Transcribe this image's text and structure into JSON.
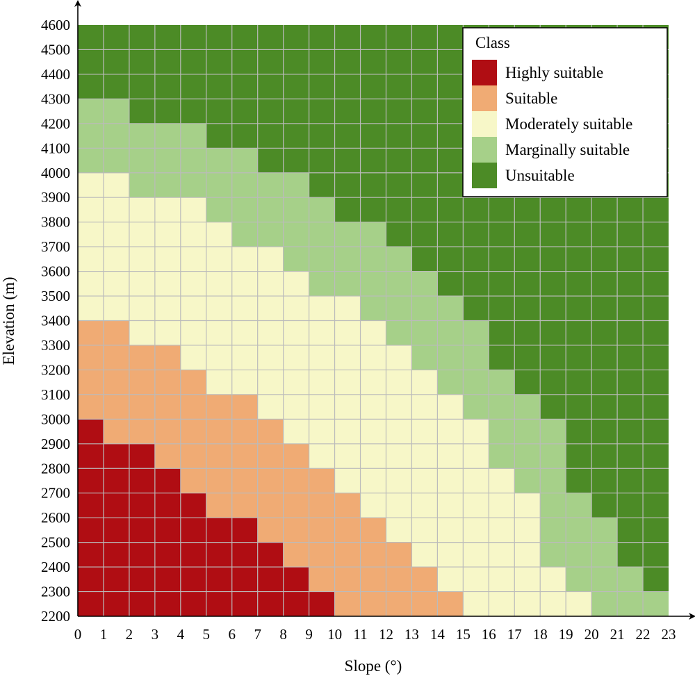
{
  "chart_data": {
    "type": "heatmap",
    "xlabel": "Slope (°)",
    "ylabel": "Elevation (m)",
    "x_ticks": [
      "0",
      "1",
      "2",
      "3",
      "4",
      "5",
      "6",
      "7",
      "8",
      "9",
      "10",
      "11",
      "12",
      "13",
      "14",
      "15",
      "16",
      "17",
      "18",
      "19",
      "20",
      "21",
      "22",
      "23"
    ],
    "y_ticks": [
      "2200",
      "2300",
      "2400",
      "2500",
      "2600",
      "2700",
      "2800",
      "2900",
      "3000",
      "3100",
      "3200",
      "3300",
      "3400",
      "3500",
      "3600",
      "3700",
      "3800",
      "3900",
      "4000",
      "4100",
      "4200",
      "4300",
      "4400",
      "4500",
      "4600"
    ],
    "xlim": [
      0,
      23
    ],
    "ylim": [
      2200,
      4600
    ],
    "x_step": 1,
    "y_step": 100,
    "grid": true,
    "legend": {
      "title": "Class",
      "position": "top-right",
      "items": [
        {
          "label": "Highly suitable",
          "color": "#b00d13",
          "code": 1
        },
        {
          "label": "Suitable",
          "color": "#f0ab74",
          "code": 2
        },
        {
          "label": "Moderately suitable",
          "color": "#f7f7c8",
          "code": 3
        },
        {
          "label": "Marginally suitable",
          "color": "#a6d089",
          "code": 4
        },
        {
          "label": "Unsuitable",
          "color": "#4c8b26",
          "code": 5
        }
      ]
    },
    "class_breaks_note": "Each slope column (x from 0 to 23 in steps of 1) lists, for the 24 elevation rows from 2200-2300 m upward, the class code; derived from the boundaries below",
    "boundaries": {
      "highly_suitable_top_elevation_by_slope": [
        3000,
        2900,
        2900,
        2800,
        2700,
        2600,
        2600,
        2500,
        2400,
        2300,
        2200,
        2200,
        2200,
        2200,
        2200,
        2200,
        2200,
        2200,
        2200,
        2200,
        2200,
        2200,
        2200
      ],
      "suitable_top_elevation_by_slope": [
        3400,
        3400,
        3300,
        3300,
        3200,
        3100,
        3100,
        3000,
        2900,
        2800,
        2700,
        2600,
        2500,
        2400,
        2300,
        2200,
        2200,
        2200,
        2200,
        2200,
        2200,
        2200,
        2200
      ],
      "moderately_suitable_top_elevation_by_slope": [
        4000,
        4000,
        3900,
        3900,
        3900,
        3800,
        3700,
        3700,
        3600,
        3500,
        3500,
        3400,
        3300,
        3200,
        3100,
        3000,
        2800,
        2700,
        2400,
        2300,
        2200,
        2200,
        2200
      ],
      "marginally_suitable_top_elevation_by_slope": [
        4300,
        4300,
        4200,
        4200,
        4200,
        4100,
        4100,
        4000,
        4000,
        3900,
        3800,
        3800,
        3700,
        3600,
        3500,
        3400,
        3200,
        3100,
        3000,
        2700,
        2600,
        2400,
        2300
      ]
    }
  }
}
